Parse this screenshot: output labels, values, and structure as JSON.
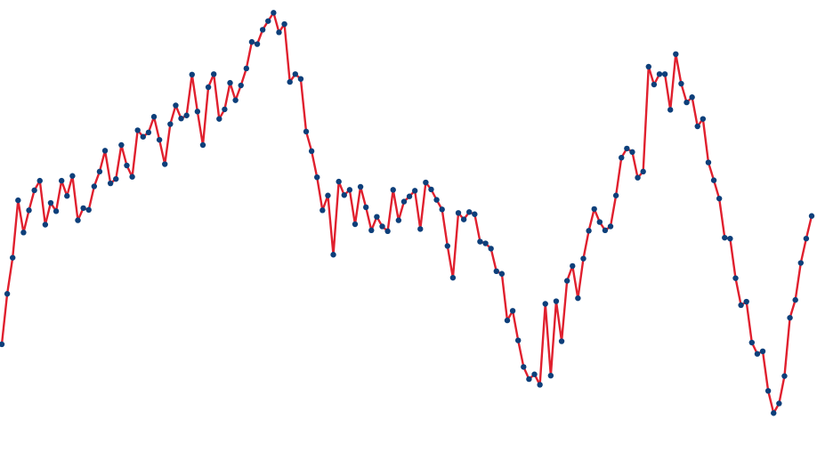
{
  "chart_data": {
    "type": "line",
    "title": "",
    "xlabel": "",
    "ylabel": "",
    "grid": false,
    "legend": "none",
    "xlim": [
      0,
      199
    ],
    "ylim": [
      0,
      100
    ],
    "line_color": "#e0202e",
    "marker_color": "#0d3f7a",
    "series": [
      {
        "values": [
          22.5,
          34.1,
          42.4,
          55.6,
          48.2,
          53.3,
          57.9,
          60.1,
          50.0,
          55.0,
          53.1,
          60.1,
          56.6,
          61.2,
          51.0,
          53.8,
          53.4,
          58.8,
          62.2,
          67.0,
          59.5,
          60.5,
          68.3,
          63.6,
          61.0,
          71.7,
          70.2,
          71.2,
          74.8,
          69.5,
          63.9,
          73.1,
          77.4,
          74.4,
          75.1,
          84.5,
          76.0,
          68.3,
          81.6,
          84.6,
          74.3,
          76.5,
          82.6,
          78.6,
          82.0,
          85.9,
          92.0,
          91.5,
          94.8,
          96.8,
          98.7,
          94.2,
          96.1,
          82.8,
          84.6,
          83.5,
          71.4,
          66.9,
          60.9,
          53.3,
          56.7,
          43.1,
          59.9,
          56.8,
          58.0,
          50.1,
          58.7,
          54.0,
          48.7,
          51.8,
          49.6,
          48.5,
          58.0,
          51.0,
          55.3,
          56.5,
          57.8,
          49.0,
          59.7,
          58.1,
          55.7,
          53.5,
          45.1,
          37.8,
          52.7,
          51.2,
          52.9,
          52.4,
          46.1,
          45.7,
          44.5,
          39.3,
          38.7,
          28.0,
          30.2,
          23.4,
          17.3,
          14.5,
          15.6,
          13.2,
          31.8,
          15.3,
          32.4,
          23.2,
          37.1,
          40.5,
          33.1,
          42.2,
          48.6,
          53.6,
          50.6,
          48.7,
          49.6,
          56.7,
          65.4,
          67.5,
          66.7,
          60.8,
          62.2,
          86.3,
          82.2,
          84.6,
          84.6,
          76.4,
          89.2,
          82.4,
          78.1,
          79.3,
          72.6,
          74.3,
          64.3,
          60.2,
          56.0,
          47.0,
          46.8,
          37.7,
          31.5,
          32.3,
          22.9,
          20.3,
          20.9,
          11.8,
          6.7,
          8.9,
          15.2,
          28.6,
          32.7,
          41.2,
          46.8,
          52.0
        ]
      }
    ]
  }
}
